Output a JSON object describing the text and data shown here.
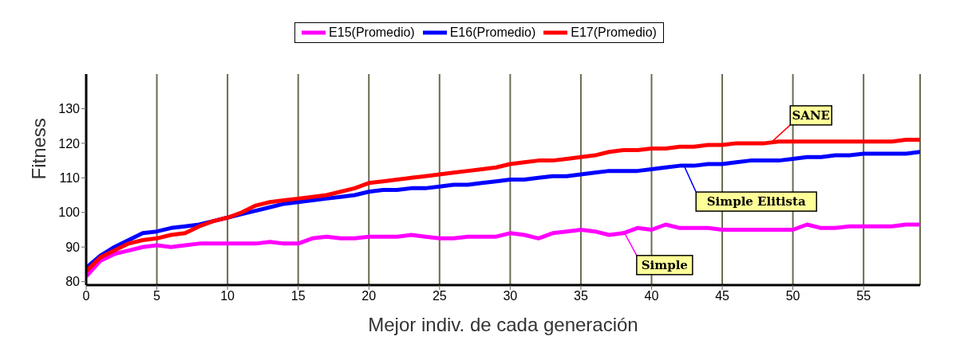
{
  "chart_data": {
    "type": "line",
    "xlabel": "Mejor indiv. de cada generación",
    "ylabel": "Fitness",
    "x": [
      0,
      1,
      2,
      3,
      4,
      5,
      6,
      7,
      8,
      9,
      10,
      11,
      12,
      13,
      14,
      15,
      16,
      17,
      18,
      19,
      20,
      21,
      22,
      23,
      24,
      25,
      26,
      27,
      28,
      29,
      30,
      31,
      32,
      33,
      34,
      35,
      36,
      37,
      38,
      39,
      40,
      41,
      42,
      43,
      44,
      45,
      46,
      47,
      48,
      49,
      50,
      51,
      52,
      53,
      54,
      55,
      56,
      57,
      58,
      59
    ],
    "series": [
      {
        "name": "E15(Promedio)",
        "color": "#ff00ff",
        "values": [
          81.5,
          86,
          88,
          89,
          90,
          90.5,
          90,
          90.5,
          91,
          91,
          91,
          91,
          91,
          91.5,
          91,
          91,
          92.5,
          93,
          92.5,
          92.5,
          93,
          93,
          93,
          93.5,
          93,
          92.5,
          92.5,
          93,
          93,
          93,
          94,
          93.5,
          92.5,
          94,
          94.5,
          95,
          94.5,
          93.5,
          94,
          95.5,
          95,
          96.5,
          95.5,
          95.5,
          95.5,
          95,
          95,
          95,
          95,
          95,
          95,
          96.5,
          95.5,
          95.5,
          96,
          96,
          96,
          96,
          96.5,
          96.5
        ]
      },
      {
        "name": "E16(Promedio)",
        "color": "#0000ff",
        "values": [
          84,
          87.5,
          90,
          92,
          94,
          94.5,
          95.5,
          96,
          96.5,
          97.5,
          98.5,
          99.5,
          100.5,
          101.5,
          102.5,
          103,
          103.5,
          104,
          104.5,
          105,
          106,
          106.5,
          106.5,
          107,
          107,
          107.5,
          108,
          108,
          108.5,
          109,
          109.5,
          109.5,
          110,
          110.5,
          110.5,
          111,
          111.5,
          112,
          112,
          112,
          112.5,
          113,
          113.5,
          113.5,
          114,
          114,
          114.5,
          115,
          115,
          115,
          115.5,
          116,
          116,
          116.5,
          116.5,
          117,
          117,
          117,
          117,
          117.5
        ]
      },
      {
        "name": "E17(Promedio)",
        "color": "#ff0000",
        "values": [
          83,
          87,
          89,
          91,
          92,
          92.5,
          93.5,
          94,
          96,
          97.5,
          98.5,
          100,
          102,
          103,
          103.5,
          104,
          104.5,
          105,
          106,
          107,
          108.5,
          109,
          109.5,
          110,
          110.5,
          111,
          111.5,
          112,
          112.5,
          113,
          114,
          114.5,
          115,
          115,
          115.5,
          116,
          116.5,
          117.5,
          118,
          118,
          118.5,
          118.5,
          119,
          119,
          119.5,
          119.5,
          120,
          120,
          120,
          120.5,
          120.5,
          120.5,
          120.5,
          120.5,
          120.5,
          120.5,
          120.5,
          120.5,
          121,
          121
        ]
      }
    ],
    "xlim": [
      0,
      59
    ],
    "xticks": [
      0,
      5,
      10,
      15,
      20,
      25,
      30,
      35,
      40,
      45,
      50,
      55
    ],
    "ylim": [
      79,
      140
    ],
    "yticks": [
      80,
      90,
      100,
      110,
      120,
      130
    ],
    "grid": "x",
    "legend": "top",
    "marker": "none",
    "line_style": "solid",
    "annotations": [
      {
        "text": "SANE",
        "x": 48.4,
        "y": 120
      },
      {
        "text": "Simple Elitista",
        "x": 42.3,
        "y": 113.5
      },
      {
        "text": "Simple",
        "x": 38.1,
        "y": 94
      }
    ]
  }
}
